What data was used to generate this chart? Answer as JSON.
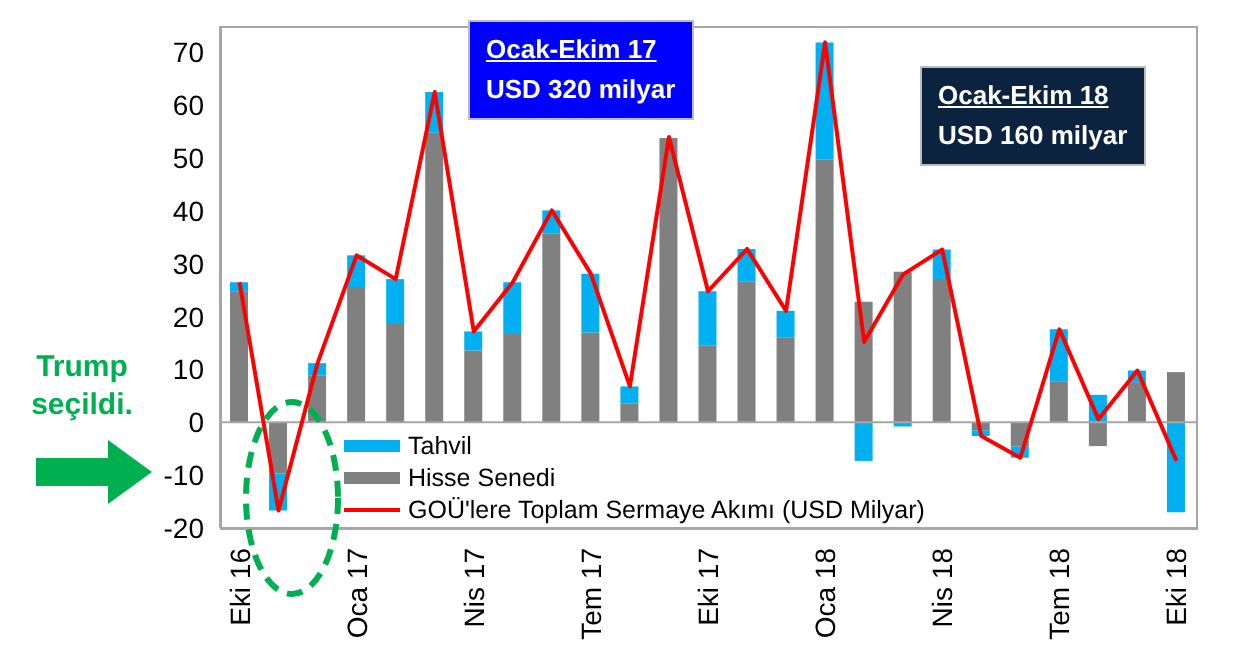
{
  "chart_data": {
    "type": "bar",
    "stacked": true,
    "categories": [
      "Eki 16",
      null,
      null,
      "Oca 17",
      null,
      null,
      "Nis 17",
      null,
      null,
      "Tem 17",
      null,
      null,
      "Eki 17",
      null,
      null,
      "Oca 18",
      null,
      null,
      "Nis 18",
      null,
      null,
      "Tem 18",
      null,
      null,
      "Eki 18"
    ],
    "series": [
      {
        "name": "Hisse Senedi",
        "color": "#808080",
        "values": [
          24.7,
          -9.7,
          8.9,
          25.6,
          18.6,
          54.8,
          13.6,
          16.7,
          35.8,
          17,
          3.6,
          53.8,
          14.5,
          26.6,
          16.1,
          49.8,
          22.8,
          28.5,
          27.1,
          -1.5,
          -4.6,
          7.7,
          -4.5,
          7.6,
          9.5
        ]
      },
      {
        "name": "Tahvil",
        "color": "#00b0f0",
        "values": [
          1.8,
          -7,
          2.3,
          6,
          8.5,
          7.7,
          3.6,
          9.8,
          4.3,
          11.1,
          3.2,
          null,
          10.3,
          6.2,
          5,
          22.1,
          -7.3,
          -0.8,
          5.6,
          -1.1,
          -2.1,
          9.9,
          5.2,
          2.2,
          -17
        ]
      },
      {
        "name": "GOÜ'lere Toplam Sermaye Akımı (USD Milyar)",
        "type": "line",
        "color": "#ff0000",
        "values": [
          26.5,
          -16.7,
          11.2,
          31.6,
          27.1,
          62.5,
          17.2,
          26.5,
          40.1,
          28.1,
          6.8,
          54,
          24.8,
          32.8,
          21.1,
          71.9,
          15.2,
          28,
          32.7,
          -2.6,
          -6.7,
          17.6,
          0.6,
          9.8,
          -7.3
        ]
      }
    ],
    "ylim": [
      -20,
      75
    ],
    "yticks": [
      -20,
      -10,
      0,
      10,
      20,
      30,
      40,
      50,
      60,
      70
    ],
    "ref_lines": [
      {
        "axis": "y",
        "value": 0,
        "color": "#a6a6a6"
      }
    ],
    "legend": "bottom left",
    "grid": false,
    "marker": "none",
    "annotations": [
      "Ocak-Ekim 17",
      "USD 320 milyar",
      "Ocak-Ekim 18",
      "USD 160 milyar",
      "Trump seçildi."
    ]
  }
}
